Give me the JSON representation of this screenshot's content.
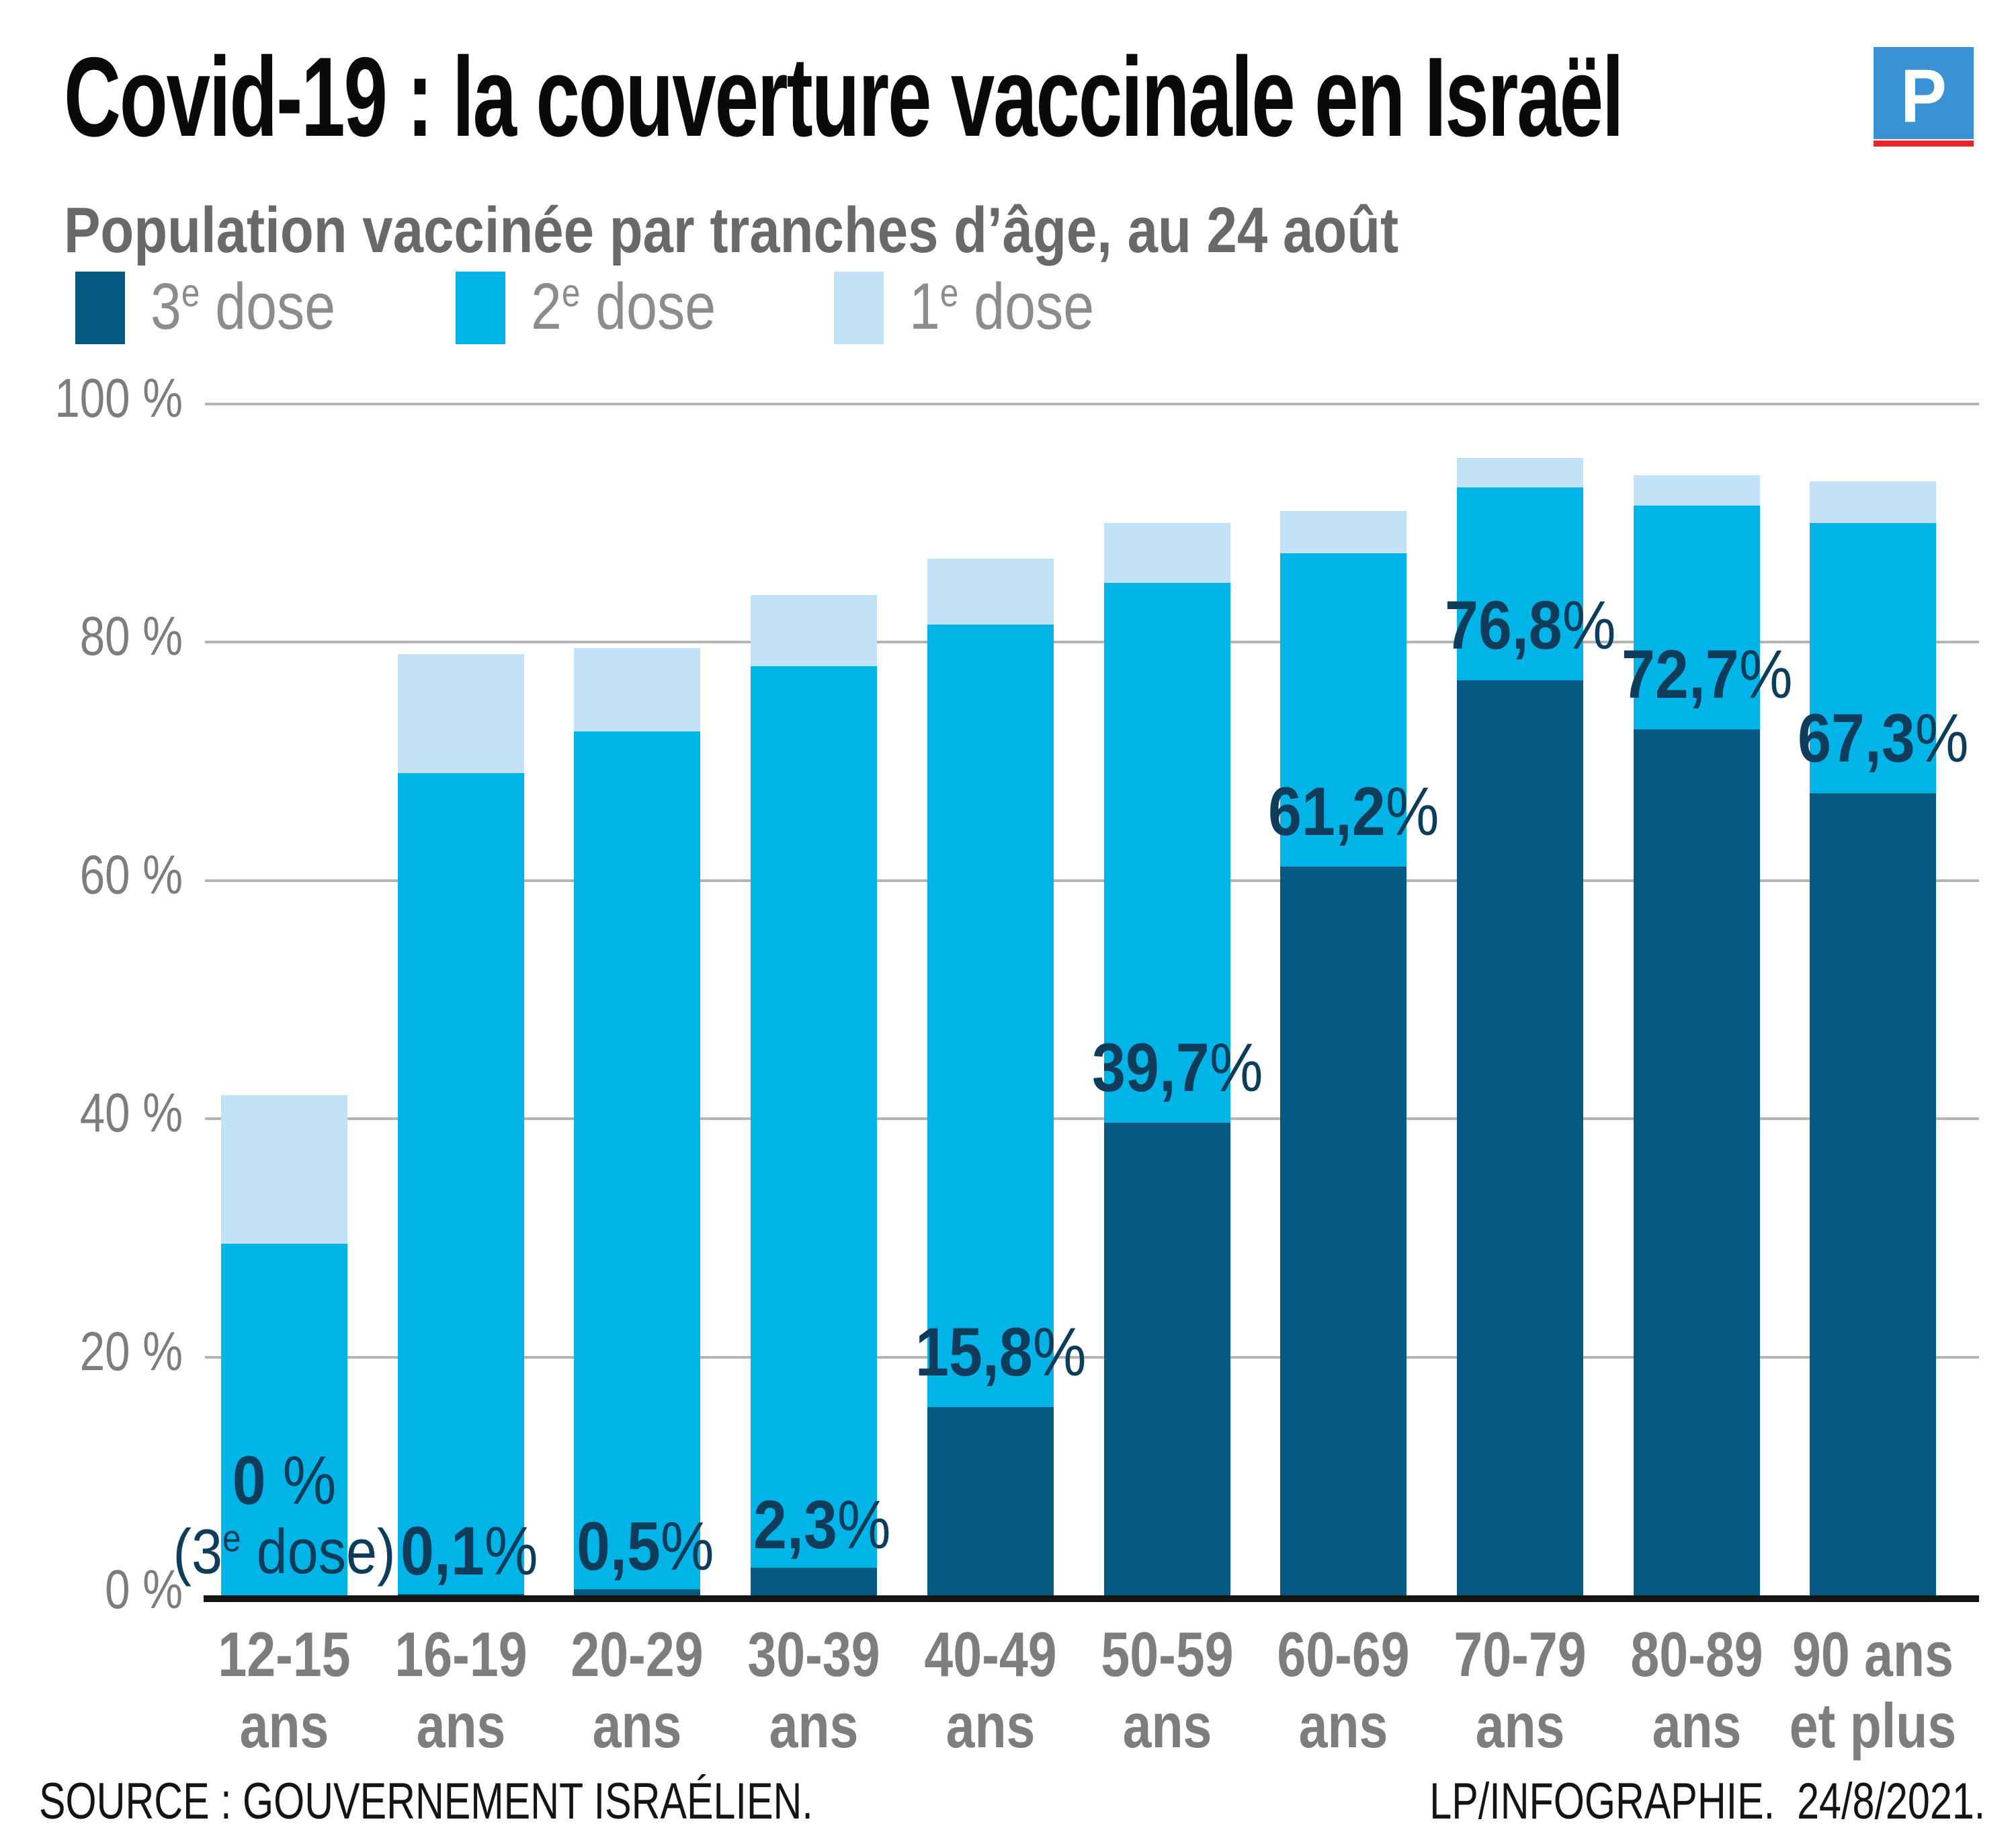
{
  "header": {
    "title": "Covid-19 : la couverture vaccinale en Israël",
    "subtitle": "Population vaccinée par tranches d’âge, au 24 août",
    "logo_letter": "P"
  },
  "legend": {
    "items": [
      {
        "prefix": "3",
        "sup": "e",
        "suffix": " dose",
        "color": "#065a82"
      },
      {
        "prefix": "2",
        "sup": "e",
        "suffix": " dose",
        "color": "#00b4e8"
      },
      {
        "prefix": "1",
        "sup": "e",
        "suffix": " dose",
        "color": "#c3e2f7"
      }
    ]
  },
  "chart_data": {
    "type": "bar",
    "stacked": true,
    "title": "Covid-19 : la couverture vaccinale en Israël",
    "subtitle": "Population vaccinée par tranches d’âge, au 24 août",
    "ylim": [
      0,
      100
    ],
    "grid": true,
    "legend_position": "top",
    "y_ticks": [
      {
        "value": 0,
        "label": "0 %"
      },
      {
        "value": 20,
        "label": "20 %"
      },
      {
        "value": 40,
        "label": "40 %"
      },
      {
        "value": 60,
        "label": "60 %"
      },
      {
        "value": 80,
        "label": "80 %"
      },
      {
        "value": 100,
        "label": "100 %"
      }
    ],
    "categories": [
      [
        "12-15",
        "ans"
      ],
      [
        "16-19",
        "ans"
      ],
      [
        "20-29",
        "ans"
      ],
      [
        "30-39",
        "ans"
      ],
      [
        "40-49",
        "ans"
      ],
      [
        "50-59",
        "ans"
      ],
      [
        "60-69",
        "ans"
      ],
      [
        "70-79",
        "ans"
      ],
      [
        "80-89",
        "ans"
      ],
      [
        "90 ans",
        "et plus"
      ]
    ],
    "series": [
      {
        "name": "1e dose",
        "color": "#c3e2f7",
        "cumulative_values": [
          42,
          79,
          79.5,
          84,
          87,
          90,
          91,
          95.5,
          94,
          93.5
        ]
      },
      {
        "name": "2e dose",
        "color": "#00b4e8",
        "cumulative_values": [
          29.5,
          69,
          72.5,
          78,
          81.5,
          85,
          87.5,
          93,
          91.5,
          90
        ]
      },
      {
        "name": "3e dose",
        "color": "#065a82",
        "values": [
          0,
          0.1,
          0.5,
          2.3,
          15.8,
          39.7,
          61.2,
          76.8,
          72.7,
          67.3
        ]
      }
    ],
    "bar_labels": {
      "percent_sign": "%",
      "values": [
        "0",
        "0,1",
        "0,5",
        "2,3",
        "15,8",
        "39,7",
        "61,2",
        "76,8",
        "72,7",
        "67,3"
      ],
      "first_bar_note": {
        "prefix": "(3",
        "sup": "e",
        "suffix": " dose)"
      },
      "label_color": "#0e3d5c"
    }
  },
  "footer": {
    "source": "SOURCE : GOUVERNEMENT ISRAÉLIEN.",
    "credit": "LP/INFOGRAPHIE.  24/8/2021."
  }
}
